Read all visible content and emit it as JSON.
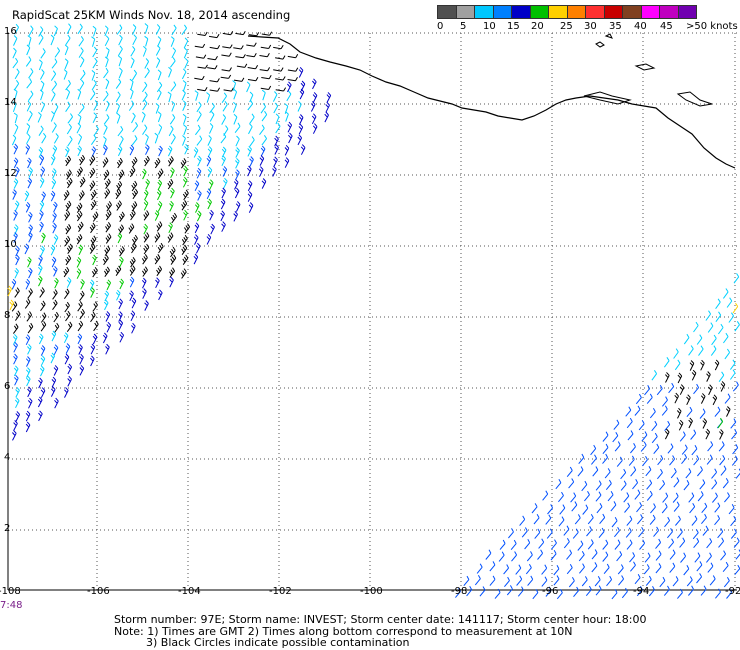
{
  "header": {
    "title": "RapidScat 25KM Winds Nov. 18, 2014 ascending"
  },
  "legend": {
    "colors": [
      "#505050",
      "#a0a0a0",
      "#00c8ff",
      "#0080ff",
      "#0000c8",
      "#00c000",
      "#ffd000",
      "#ff8000",
      "#ff3030",
      "#c80000",
      "#804020",
      "#ff00ff",
      "#c000c0",
      "#7000b0"
    ],
    "labels": [
      "0",
      "5",
      "10",
      "15",
      "20",
      "25",
      "30",
      "35",
      "40",
      "45",
      ">50 knots"
    ]
  },
  "map": {
    "lon_labels": [
      "-108",
      "-106",
      "-104",
      "-102",
      "-100",
      "-98",
      "-96",
      "-94",
      "-92"
    ],
    "lat_labels": [
      "16",
      "14",
      "12",
      "10",
      "8",
      "6",
      "4",
      "2"
    ],
    "wind_colors": {
      "calm": "#000000",
      "light": "#00d0ff",
      "moderate": "#0050ff",
      "strong": "#0000c8",
      "green": "#00c800",
      "yellow": "#ffd000"
    }
  },
  "footer": {
    "time_label": "7:48",
    "storm_line": "Storm number: 97E;  Storm name: INVEST;  Storm center date: 141117;  Storm center hour: 18:00",
    "note1": "Note: 1) Times are GMT  2) Times along bottom correspond to measurement at 10N",
    "note2": "3) Black Circles indicate possible contamination"
  }
}
